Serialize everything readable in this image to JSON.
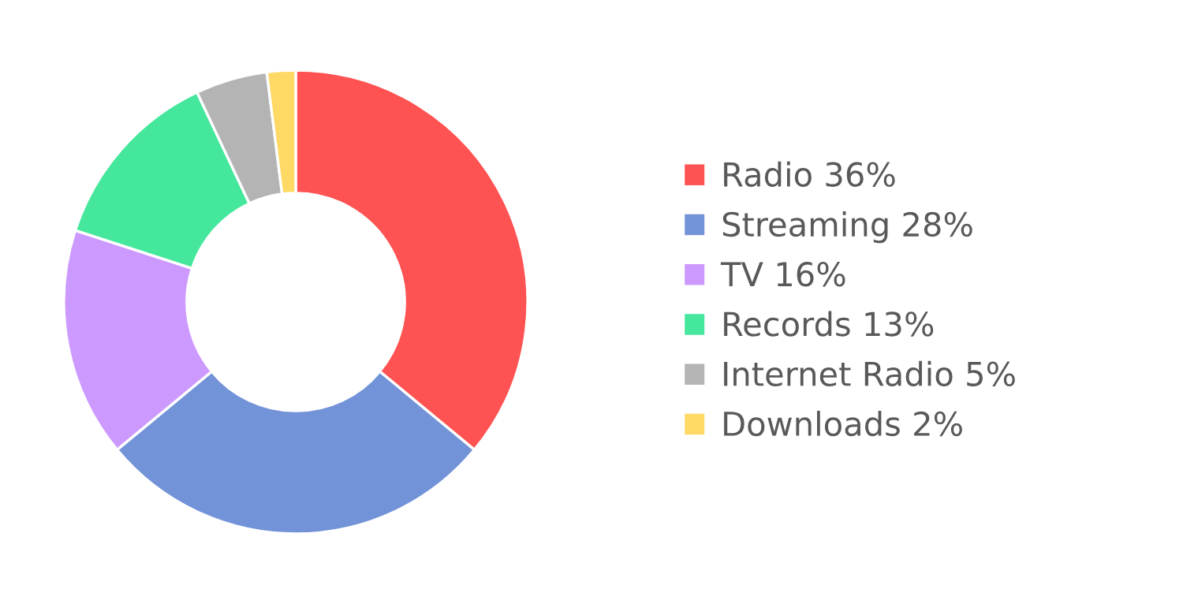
{
  "chart_data": {
    "type": "donut",
    "categories": [
      "Radio",
      "Streaming",
      "TV",
      "Records",
      "Internet Radio",
      "Downloads"
    ],
    "values": [
      36,
      28,
      16,
      13,
      5,
      2
    ],
    "value_labels": [
      "36%",
      "28%",
      "16%",
      "13%",
      "5%",
      "2%"
    ],
    "colors": [
      "#ff5252",
      "#7393d8",
      "#cc99ff",
      "#44e79b",
      "#b4b4b4",
      "#ffd966"
    ],
    "legend": "right"
  }
}
